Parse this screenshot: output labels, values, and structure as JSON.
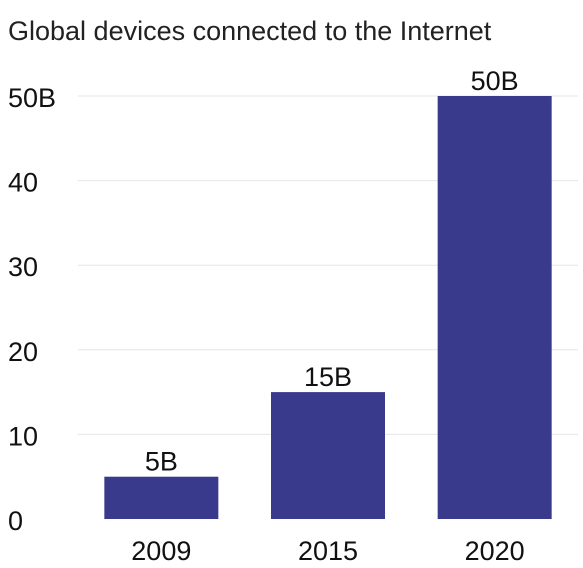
{
  "chart_data": {
    "type": "bar",
    "title": "Global devices connected to the Internet",
    "categories": [
      "2009",
      "2015",
      "2020"
    ],
    "values": [
      5,
      15,
      50
    ],
    "data_labels": [
      "5B",
      "15B",
      "50B"
    ],
    "xlabel": "",
    "ylabel": "",
    "ylim": [
      0,
      50
    ],
    "yticks": [
      {
        "value": 0,
        "label": "0"
      },
      {
        "value": 10,
        "label": "10"
      },
      {
        "value": 20,
        "label": "20"
      },
      {
        "value": 30,
        "label": "30"
      },
      {
        "value": 40,
        "label": "40"
      },
      {
        "value": 50,
        "label": "50B"
      }
    ],
    "grid": true,
    "bar_color": "#3a3a8c",
    "grid_color": "#e6e6e6"
  }
}
